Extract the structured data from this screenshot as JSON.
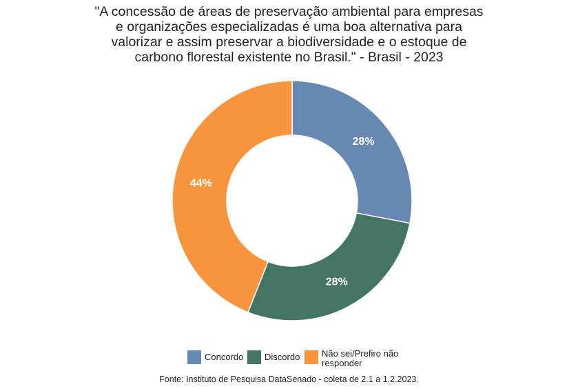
{
  "title_lines": [
    "\"A concessão de áreas de preservação ambiental para empresas",
    "e organizações especializadas é uma boa alternativa para",
    "valorizar e assim preservar a biodiversidade e o estoque de",
    "carbono florestal existente no Brasil.\" - Brasil - 2023"
  ],
  "chart_data": {
    "type": "pie",
    "title": "\"A concessão de áreas de preservação ambiental para empresas e organizações especializadas é uma boa alternativa para valorizar e assim preservar a biodiversidade e o estoque de carbono florestal existente no Brasil.\" - Brasil - 2023",
    "donut": true,
    "categories": [
      "Concordo",
      "Discordo",
      "Não sei/Prefiro não responder"
    ],
    "values": [
      28,
      28,
      44
    ],
    "value_labels": [
      "28%",
      "28%",
      "44%"
    ],
    "colors": [
      "#6788B1",
      "#427563",
      "#F7943D"
    ],
    "legend_position": "bottom"
  },
  "legend": [
    {
      "label_lines": [
        "Concordo"
      ],
      "color": "#6788B1"
    },
    {
      "label_lines": [
        "Discordo"
      ],
      "color": "#427563"
    },
    {
      "label_lines": [
        "Não sei/Prefiro não",
        "responder"
      ],
      "color": "#F7943D"
    }
  ],
  "source": "Fonte: Instituto de Pesquisa DataSenado - coleta de 2.1 a 1.2.2023."
}
